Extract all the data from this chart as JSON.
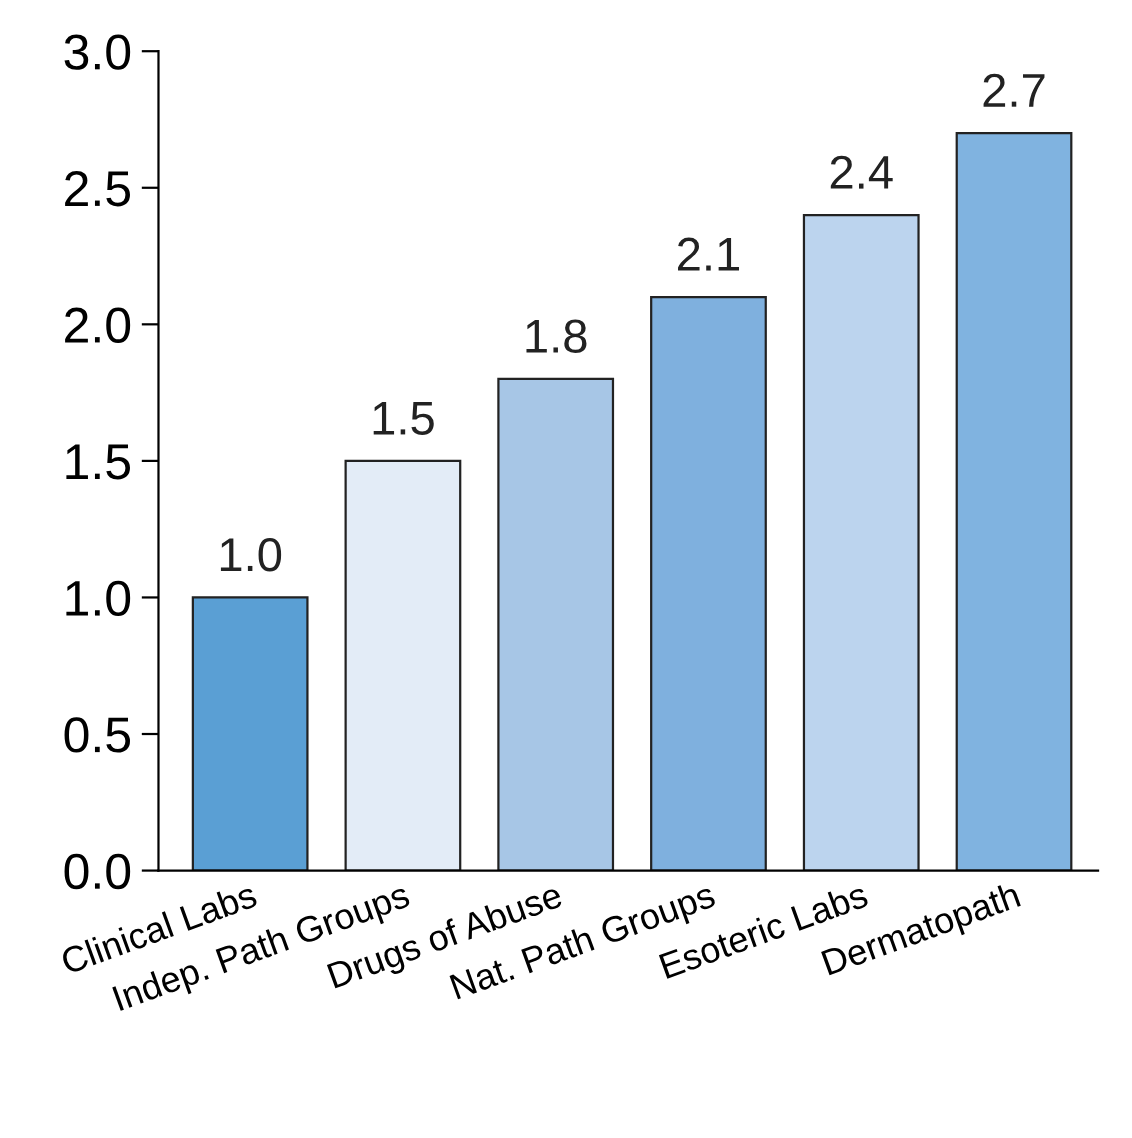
{
  "chart_data": {
    "type": "bar",
    "categories": [
      "Clinical Labs",
      "Indep. Path Groups",
      "Drugs of Abuse",
      "Nat. Path Groups",
      "Esoteric Labs",
      "Dermatopath"
    ],
    "values": [
      1.0,
      1.5,
      1.8,
      2.1,
      2.4,
      2.7
    ],
    "colors": [
      "#5a9fd4",
      "#e3ecf7",
      "#a7c6e6",
      "#7fb0de",
      "#bcd4ee",
      "#80b3e0"
    ],
    "ylim": [
      0,
      3.0
    ],
    "yticks": [
      {
        "value": 0,
        "label": "0.0"
      },
      {
        "value": 0.5,
        "label": "0.5"
      },
      {
        "value": 1.0,
        "label": "1.0"
      },
      {
        "value": 1.5,
        "label": "1.5"
      },
      {
        "value": 2.0,
        "label": "2.0"
      },
      {
        "value": 2.5,
        "label": "2.5"
      },
      {
        "value": 3.0,
        "label": "3.0"
      }
    ],
    "value_labels": [
      "1.0",
      "1.5",
      "1.8",
      "2.1",
      "2.4",
      "2.7"
    ],
    "grid": false
  }
}
